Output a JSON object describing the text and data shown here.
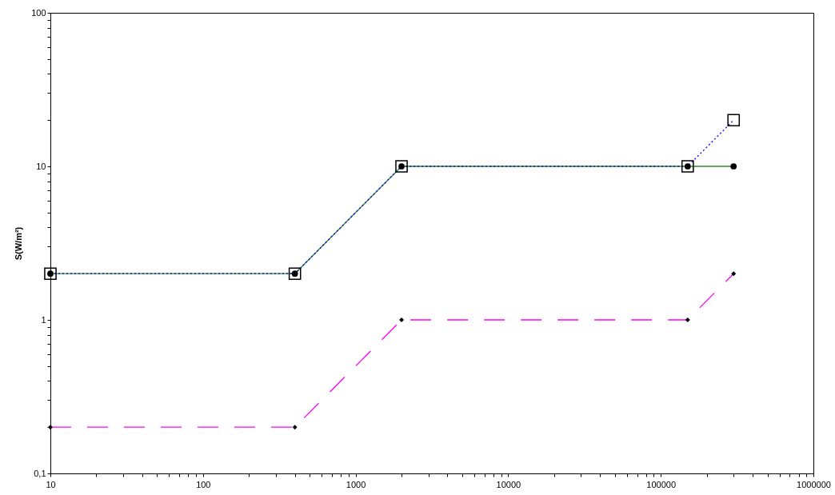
{
  "chart_data": {
    "type": "line",
    "ylabel": "S(W/m²)",
    "log": "xy",
    "grid": false,
    "x": [
      10,
      400,
      2000,
      150000,
      300000
    ],
    "xlim": [
      10,
      1000000
    ],
    "xticks": [
      10,
      {
        "value": 20,
        "label": null
      },
      {
        "value": 30,
        "label": null
      },
      {
        "value": 40,
        "label": null
      },
      {
        "value": 50,
        "label": null
      },
      {
        "value": 60,
        "label": null
      },
      {
        "value": 70,
        "label": null
      },
      {
        "value": 80,
        "label": null
      },
      {
        "value": 90,
        "label": null
      },
      100,
      {
        "value": 200,
        "label": null
      },
      {
        "value": 300,
        "label": null
      },
      {
        "value": 400,
        "label": null
      },
      {
        "value": 500,
        "label": null
      },
      {
        "value": 600,
        "label": null
      },
      {
        "value": 700,
        "label": null
      },
      {
        "value": 800,
        "label": null
      },
      {
        "value": 900,
        "label": null
      },
      1000,
      {
        "value": 2000,
        "label": null
      },
      {
        "value": 3000,
        "label": null
      },
      {
        "value": 4000,
        "label": null
      },
      {
        "value": 5000,
        "label": null
      },
      {
        "value": 6000,
        "label": null
      },
      {
        "value": 7000,
        "label": null
      },
      {
        "value": 8000,
        "label": null
      },
      {
        "value": 9000,
        "label": null
      },
      10000,
      {
        "value": 20000,
        "label": null
      },
      {
        "value": 30000,
        "label": null
      },
      {
        "value": 40000,
        "label": null
      },
      {
        "value": 50000,
        "label": null
      },
      {
        "value": 60000,
        "label": null
      },
      {
        "value": 70000,
        "label": null
      },
      {
        "value": 80000,
        "label": null
      },
      {
        "value": 90000,
        "label": null
      },
      100000,
      {
        "value": 200000,
        "label": null
      },
      {
        "value": 300000,
        "label": null
      },
      {
        "value": 400000,
        "label": null
      },
      {
        "value": 500000,
        "label": null
      },
      {
        "value": 600000,
        "label": null
      },
      {
        "value": 700000,
        "label": null
      },
      {
        "value": 800000,
        "label": null
      },
      {
        "value": 900000,
        "label": null
      },
      1000000
    ],
    "ylim": [
      0.1,
      100
    ],
    "yticks": [
      {
        "value": 0.1,
        "label": "0,1"
      },
      {
        "value": 0.2,
        "label": null
      },
      {
        "value": 0.3,
        "label": null
      },
      {
        "value": 0.4,
        "label": null
      },
      {
        "value": 0.5,
        "label": null
      },
      {
        "value": 0.6,
        "label": null
      },
      {
        "value": 0.7,
        "label": null
      },
      {
        "value": 0.8,
        "label": null
      },
      {
        "value": 0.9,
        "label": null
      },
      1,
      {
        "value": 2,
        "label": null
      },
      {
        "value": 3,
        "label": null
      },
      {
        "value": 4,
        "label": null
      },
      {
        "value": 5,
        "label": null
      },
      {
        "value": 6,
        "label": null
      },
      {
        "value": 7,
        "label": null
      },
      {
        "value": 8,
        "label": null
      },
      {
        "value": 9,
        "label": null
      },
      10,
      {
        "value": 20,
        "label": null
      },
      {
        "value": 30,
        "label": null
      },
      {
        "value": 40,
        "label": null
      },
      {
        "value": 50,
        "label": null
      },
      {
        "value": 60,
        "label": null
      },
      {
        "value": 70,
        "label": null
      },
      {
        "value": 80,
        "label": null
      },
      {
        "value": 90,
        "label": null
      },
      100
    ],
    "series": [
      {
        "color": "#2e8b2e",
        "marker": "circle",
        "line_style": "solid",
        "values": [
          2,
          2,
          10,
          10,
          10
        ]
      },
      {
        "color": "#0000ff",
        "marker": "square",
        "line_style": "dotted",
        "values": [
          2,
          2,
          10,
          10,
          20
        ]
      },
      {
        "color": "#ff00ff",
        "marker": "diamond",
        "line_style": "dashed",
        "values": [
          0.2,
          0.2,
          1,
          1,
          2
        ]
      }
    ]
  }
}
